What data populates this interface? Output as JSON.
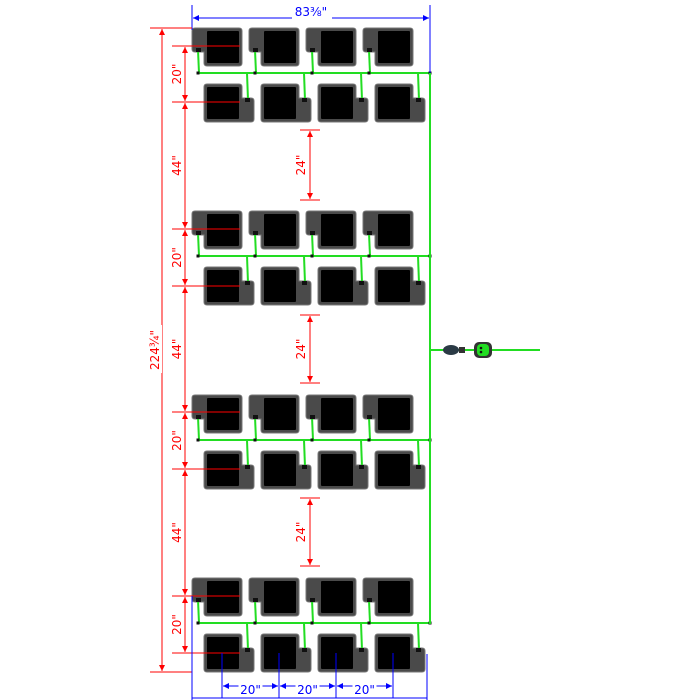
{
  "dimensions": {
    "total_width": "83⅜\"",
    "total_length": "224¾\"",
    "row_pair_spacing": "20\"",
    "group_gap": "44\"",
    "aisle": "24\"",
    "pot_spacing": "20\""
  },
  "layout": {
    "groups": 4,
    "rows_per_group": 2,
    "pots_per_row": 4
  },
  "colors": {
    "pot_body": "#4a4a4a",
    "pot_reservoir": "#000000",
    "tubing": "#22dd22",
    "dimension_red": "#ff0000",
    "dimension_blue": "#0000ff"
  }
}
